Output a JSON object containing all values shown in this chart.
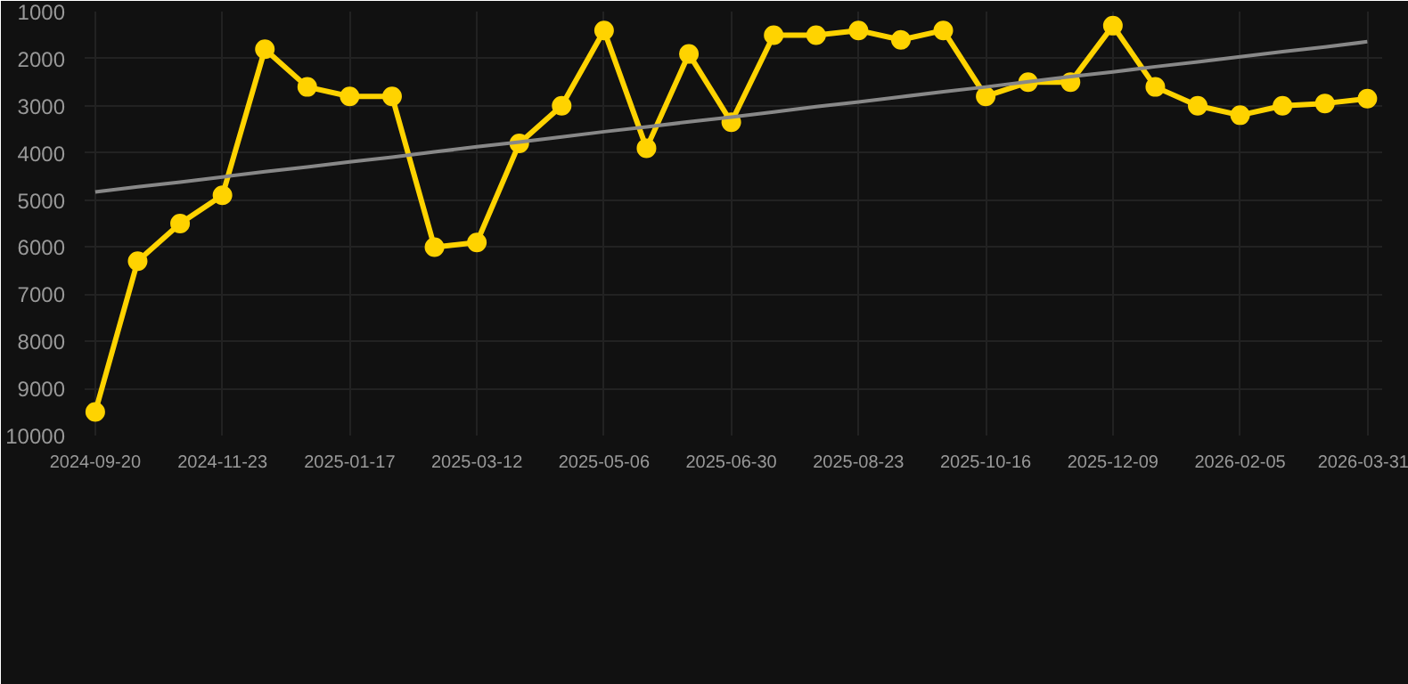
{
  "chart_data": {
    "type": "line",
    "categories": [
      "2024-09-20",
      null,
      null,
      "2024-11-23",
      null,
      null,
      "2025-01-17",
      null,
      null,
      "2025-03-12",
      null,
      null,
      "2025-05-06",
      null,
      null,
      "2025-06-30",
      null,
      null,
      "2025-08-23",
      null,
      null,
      "2025-10-16",
      null,
      null,
      "2025-12-09",
      null,
      null,
      "2026-02-05",
      null,
      null,
      "2026-03-31"
    ],
    "series": [
      {
        "color": "#ffd300",
        "marker": "circle",
        "values": [
          9500,
          6300,
          5500,
          4900,
          1800,
          2600,
          2800,
          2800,
          6000,
          5900,
          3800,
          3000,
          1400,
          3900,
          1900,
          3350,
          1500,
          1500,
          1400,
          1600,
          1400,
          2800,
          2500,
          2500,
          1300,
          2600,
          3000,
          3200,
          3000,
          2950,
          2850
        ]
      },
      {
        "type": "line",
        "color": "#888888",
        "marker": "none",
        "values": [
          4830,
          4720,
          4620,
          4510,
          4400,
          4300,
          4190,
          4090,
          3980,
          3870,
          3770,
          3660,
          3550,
          3450,
          3340,
          3240,
          3130,
          3020,
          2920,
          2810,
          2700,
          2600,
          2490,
          2380,
          2280,
          2170,
          2070,
          1960,
          1850,
          1750,
          1640
        ]
      }
    ],
    "ylim": [
      10000,
      1000
    ],
    "yticks": [
      1000,
      2000,
      3000,
      4000,
      5000,
      6000,
      7000,
      8000,
      9000,
      10000
    ],
    "grid": true
  }
}
